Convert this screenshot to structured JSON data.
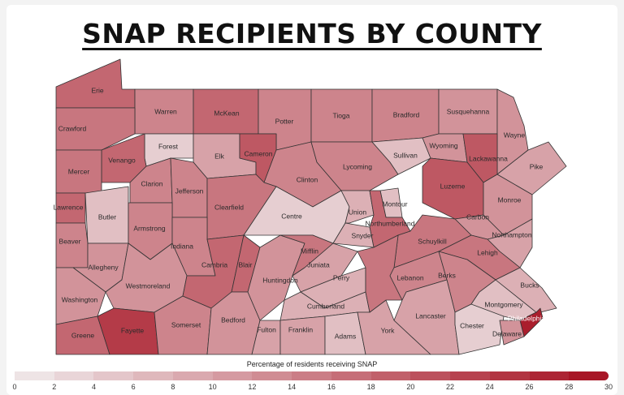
{
  "title": "SNAP RECIPIENTS BY COUNTY",
  "legend": {
    "title": "Percentage of residents receiving SNAP",
    "ticks": [
      "0",
      "2",
      "4",
      "6",
      "8",
      "10",
      "12",
      "14",
      "16",
      "18",
      "20",
      "22",
      "24",
      "26",
      "28",
      "30"
    ],
    "min": 0,
    "max": 30,
    "color_low": "#f0ebec",
    "color_high": "#a50f1f"
  },
  "counties": [
    {
      "name": "Erie",
      "value": 18
    },
    {
      "name": "Warren",
      "value": 14
    },
    {
      "name": "McKean",
      "value": 18
    },
    {
      "name": "Potter",
      "value": 14
    },
    {
      "name": "Tioga",
      "value": 14
    },
    {
      "name": "Bradford",
      "value": 14
    },
    {
      "name": "Susquehanna",
      "value": 12
    },
    {
      "name": "Wayne",
      "value": 12
    },
    {
      "name": "Pike",
      "value": 10
    },
    {
      "name": "Crawford",
      "value": 16
    },
    {
      "name": "Forest",
      "value": 4
    },
    {
      "name": "Elk",
      "value": 10
    },
    {
      "name": "Cameron",
      "value": 20
    },
    {
      "name": "Clinton",
      "value": 14
    },
    {
      "name": "Lycoming",
      "value": 14
    },
    {
      "name": "Sullivan",
      "value": 6
    },
    {
      "name": "Wyoming",
      "value": 12
    },
    {
      "name": "Lackawanna",
      "value": 20
    },
    {
      "name": "Venango",
      "value": 18
    },
    {
      "name": "Mercer",
      "value": 16
    },
    {
      "name": "Clarion",
      "value": 14
    },
    {
      "name": "Jefferson",
      "value": 14
    },
    {
      "name": "Clearfield",
      "value": 16
    },
    {
      "name": "Centre",
      "value": 4
    },
    {
      "name": "Lawrence",
      "value": 18
    },
    {
      "name": "Butler",
      "value": 6
    },
    {
      "name": "Armstrong",
      "value": 14
    },
    {
      "name": "Indiana",
      "value": 14
    },
    {
      "name": "Union",
      "value": 8
    },
    {
      "name": "Montour",
      "value": 6
    },
    {
      "name": "Northumberland",
      "value": 18
    },
    {
      "name": "Snyder",
      "value": 8
    },
    {
      "name": "Luzerne",
      "value": 20
    },
    {
      "name": "Monroe",
      "value": 12
    },
    {
      "name": "Carbon",
      "value": 12
    },
    {
      "name": "Schuylkill",
      "value": 16
    },
    {
      "name": "Northampton",
      "value": 10
    },
    {
      "name": "Lehigh",
      "value": 16
    },
    {
      "name": "Beaver",
      "value": 14
    },
    {
      "name": "Allegheny",
      "value": 12
    },
    {
      "name": "Washington",
      "value": 12
    },
    {
      "name": "Greene",
      "value": 18
    },
    {
      "name": "Westmoreland",
      "value": 12
    },
    {
      "name": "Fayette",
      "value": 24
    },
    {
      "name": "Somerset",
      "value": 14
    },
    {
      "name": "Cambria",
      "value": 18
    },
    {
      "name": "Blair",
      "value": 18
    },
    {
      "name": "Bedford",
      "value": 12
    },
    {
      "name": "Huntingdon",
      "value": 12
    },
    {
      "name": "Mifflin",
      "value": 16
    },
    {
      "name": "Juniata",
      "value": 10
    },
    {
      "name": "Perry",
      "value": 8
    },
    {
      "name": "Cumberland",
      "value": 8
    },
    {
      "name": "Fulton",
      "value": 10
    },
    {
      "name": "Franklin",
      "value": 10
    },
    {
      "name": "Adams",
      "value": 6
    },
    {
      "name": "York",
      "value": 10
    },
    {
      "name": "Dauphin",
      "value": 16
    },
    {
      "name": "Lebanon",
      "value": 14
    },
    {
      "name": "Berks",
      "value": 14
    },
    {
      "name": "Lancaster",
      "value": 10
    },
    {
      "name": "Chester",
      "value": 4
    },
    {
      "name": "Montgomery",
      "value": 6
    },
    {
      "name": "Bucks",
      "value": 8
    },
    {
      "name": "Philadelphia",
      "value": 28
    },
    {
      "name": "Delaware",
      "value": 12
    }
  ]
}
